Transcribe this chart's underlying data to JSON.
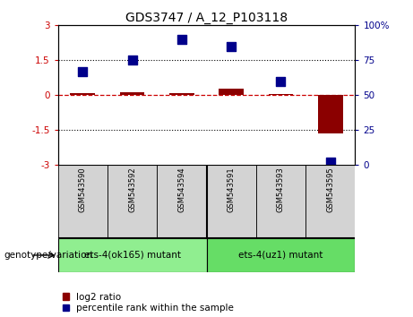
{
  "title": "GDS3747 / A_12_P103118",
  "samples": [
    "GSM543590",
    "GSM543592",
    "GSM543594",
    "GSM543591",
    "GSM543593",
    "GSM543595"
  ],
  "log2_ratio": [
    0.08,
    0.12,
    0.1,
    0.28,
    0.05,
    -1.65
  ],
  "percentile_rank": [
    67,
    75,
    90,
    85,
    60,
    2
  ],
  "groups": [
    {
      "label": "ets-4(ok165) mutant",
      "indices": [
        0,
        1,
        2
      ],
      "color": "#90ee90"
    },
    {
      "label": "ets-4(uz1) mutant",
      "indices": [
        3,
        4,
        5
      ],
      "color": "#66dd66"
    }
  ],
  "ylim_left": [
    -3,
    3
  ],
  "ylim_right": [
    0,
    100
  ],
  "yticks_left": [
    -3,
    -1.5,
    0,
    1.5,
    3
  ],
  "yticks_right": [
    0,
    25,
    50,
    75,
    100
  ],
  "ytick_labels_left": [
    "-3",
    "-1.5",
    "0",
    "1.5",
    "3"
  ],
  "ytick_labels_right": [
    "0",
    "25",
    "50",
    "75",
    "100%"
  ],
  "hlines": [
    1.5,
    -1.5
  ],
  "bar_color": "#8B0000",
  "scatter_color": "#00008B",
  "dashed_line_color": "#cc0000",
  "bar_width": 0.5,
  "scatter_size": 55,
  "genotype_label": "genotype/variation",
  "legend_items": [
    {
      "label": "log2 ratio",
      "color": "#8B0000"
    },
    {
      "label": "percentile rank within the sample",
      "color": "#00008B"
    }
  ],
  "sample_box_color": "#d3d3d3",
  "tick_label_fontsize": 7.5,
  "title_fontsize": 10,
  "legend_fontsize": 7.5,
  "axis_label_fontsize": 7.5
}
